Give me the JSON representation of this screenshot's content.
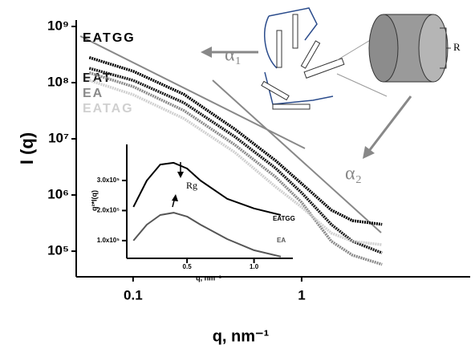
{
  "chart_data": [
    {
      "type": "line",
      "xlabel": "q, nm⁻¹",
      "ylabel": "I (q)",
      "log_x": true,
      "log_y": true,
      "x": [
        0.055,
        0.1,
        0.2,
        0.4,
        0.7,
        1,
        1.5,
        2,
        3
      ],
      "series": [
        {
          "name": "EATGG",
          "color": "#000000",
          "values": [
            280000000,
            160000000,
            62000000,
            15000000,
            4100000,
            1600000,
            540000,
            350000,
            300000
          ]
        },
        {
          "name": "EAT",
          "color": "#1a1a1a",
          "values": [
            180000000,
            110000000,
            44000000,
            11000000,
            3000000,
            1100000,
            300000,
            150000,
            93000
          ]
        },
        {
          "name": "EA",
          "color": "#8a8a8a",
          "values": [
            150000000,
            85000000,
            32000000,
            7900000,
            2100000,
            740000,
            150000,
            85000,
            58000
          ]
        },
        {
          "name": "EATAG",
          "color": "#d0d0d0",
          "values": [
            110000000,
            61000000,
            23000000,
            5800000,
            1400000,
            610000,
            210000,
            150000,
            130000
          ]
        }
      ],
      "xlim": [
        0.046,
        10
      ],
      "ylim": [
        35000,
        1300000000
      ],
      "xticks": [
        0.1,
        1
      ],
      "yticks": [
        {
          "value": 100000,
          "label": "10⁵"
        },
        {
          "value": 1000000,
          "label": "10⁶"
        },
        {
          "value": 10000000,
          "label": "10⁷"
        },
        {
          "value": 100000000,
          "label": "10⁸"
        },
        {
          "value": 1000000000,
          "label": "10⁹"
        }
      ],
      "annotations": [
        "α₁",
        "α₂",
        "R"
      ]
    },
    {
      "type": "line",
      "xlabel": "q, nm⁻¹",
      "ylabel": "q²*I(q)",
      "x": [
        0.1,
        0.2,
        0.3,
        0.4,
        0.5,
        0.6,
        0.8,
        1.0,
        1.2
      ],
      "series": [
        {
          "name": "EATGG",
          "color": "#000000",
          "values": [
            212000,
            300000,
            353000,
            359000,
            340000,
            300000,
            239000,
            207000,
            185000
          ]
        },
        {
          "name": "EA",
          "color": "#555555",
          "values": [
            100000,
            153000,
            185000,
            193000,
            180000,
            153000,
            105000,
            68000,
            47000
          ]
        }
      ],
      "xlim": [
        0.05,
        1.29
      ],
      "ylim": [
        41000,
        420000
      ],
      "xticks": [
        0.5,
        {
          "value": 1,
          "label": "1.0"
        }
      ],
      "yticks": [
        {
          "value": 100000,
          "label": "1.0x10⁵"
        },
        {
          "value": 200000,
          "label": "2.0x10⁵"
        },
        {
          "value": 300000,
          "label": "3.0x10⁵"
        }
      ],
      "annotations": [
        "Rg"
      ]
    }
  ]
}
